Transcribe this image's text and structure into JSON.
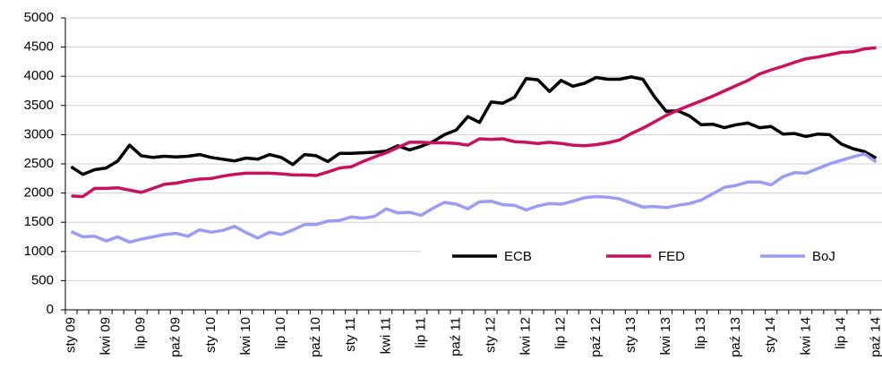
{
  "chart_data": {
    "type": "line",
    "categories": [
      "sty 09",
      null,
      null,
      "kwi 09",
      null,
      null,
      "lip 09",
      null,
      null,
      "paź 09",
      null,
      null,
      "sty 10",
      null,
      null,
      "kwi 10",
      null,
      null,
      "lip 10",
      null,
      null,
      "paź 10",
      null,
      null,
      "sty 11",
      null,
      null,
      "kwi 11",
      null,
      null,
      "lip 11",
      null,
      null,
      "paź 11",
      null,
      null,
      "sty 12",
      null,
      null,
      "kwi 12",
      null,
      null,
      "lip 12",
      null,
      null,
      "paź 12",
      null,
      null,
      "sty 13",
      null,
      null,
      "kwi 13",
      null,
      null,
      "lip 13",
      null,
      null,
      "paź 13",
      null,
      null,
      "sty 14",
      null,
      null,
      "kwi 14",
      null,
      null,
      "lip 14",
      null,
      null,
      "paź 14"
    ],
    "series": [
      {
        "name": "ECB",
        "color": "#000000",
        "values": [
          2450,
          2320,
          2400,
          2430,
          2550,
          2820,
          2640,
          2610,
          2630,
          2620,
          2630,
          2660,
          2610,
          2580,
          2550,
          2600,
          2580,
          2660,
          2610,
          2490,
          2660,
          2640,
          2540,
          2680,
          2680,
          2690,
          2700,
          2720,
          2810,
          2740,
          2800,
          2880,
          3000,
          3080,
          3310,
          3210,
          3560,
          3540,
          3640,
          3960,
          3940,
          3740,
          3930,
          3830,
          3880,
          3980,
          3950,
          3950,
          3990,
          3950,
          3650,
          3400,
          3410,
          3320,
          3170,
          3180,
          3120,
          3170,
          3200,
          3120,
          3140,
          3010,
          3020,
          2970,
          3010,
          3000,
          2840,
          2760,
          2710,
          2600
        ]
      },
      {
        "name": "FED",
        "color": "#c8125e",
        "values": [
          1950,
          1940,
          2080,
          2080,
          2090,
          2050,
          2010,
          2080,
          2150,
          2170,
          2210,
          2240,
          2250,
          2290,
          2320,
          2340,
          2340,
          2340,
          2330,
          2310,
          2310,
          2300,
          2360,
          2430,
          2450,
          2540,
          2620,
          2690,
          2780,
          2870,
          2870,
          2860,
          2860,
          2850,
          2820,
          2930,
          2920,
          2930,
          2880,
          2870,
          2850,
          2870,
          2850,
          2820,
          2810,
          2830,
          2860,
          2910,
          3020,
          3110,
          3220,
          3330,
          3420,
          3500,
          3580,
          3660,
          3750,
          3840,
          3930,
          4040,
          4110,
          4170,
          4240,
          4300,
          4330,
          4370,
          4410,
          4420,
          4470,
          4490
        ]
      },
      {
        "name": "BoJ",
        "color": "#9b9cf6",
        "values": [
          1340,
          1250,
          1260,
          1180,
          1250,
          1160,
          1210,
          1250,
          1290,
          1310,
          1260,
          1370,
          1330,
          1360,
          1430,
          1320,
          1230,
          1330,
          1290,
          1370,
          1460,
          1460,
          1520,
          1530,
          1590,
          1570,
          1600,
          1730,
          1660,
          1670,
          1620,
          1740,
          1840,
          1810,
          1730,
          1850,
          1860,
          1800,
          1790,
          1710,
          1780,
          1820,
          1810,
          1860,
          1920,
          1940,
          1930,
          1900,
          1830,
          1760,
          1770,
          1750,
          1790,
          1820,
          1880,
          1990,
          2100,
          2130,
          2190,
          2190,
          2140,
          2280,
          2350,
          2340,
          2420,
          2500,
          2560,
          2620,
          2670,
          2530
        ]
      }
    ],
    "ylim": [
      0,
      5000
    ],
    "yticks": [
      0,
      500,
      1000,
      1500,
      2000,
      2500,
      3000,
      3500,
      4000,
      4500,
      5000
    ],
    "grid": true
  }
}
